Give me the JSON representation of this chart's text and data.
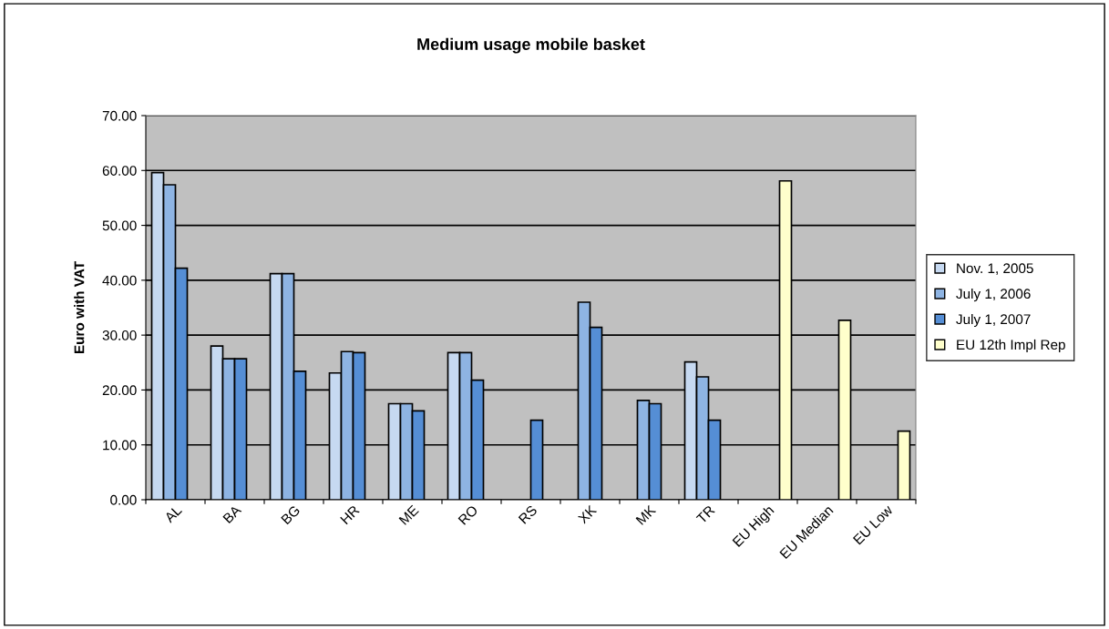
{
  "chart_data": {
    "type": "bar",
    "title": "Medium usage mobile basket",
    "ylabel": "Euro with VAT",
    "categories": [
      "AL",
      "BA",
      "BG",
      "HR",
      "ME",
      "RO",
      "RS",
      "XK",
      "MK",
      "TR",
      "EU High",
      "EU Median",
      "EU Low"
    ],
    "series": [
      {
        "name": "Nov. 1, 2005",
        "color": "#c6d9f1",
        "values": [
          59.6,
          28.0,
          41.2,
          23.1,
          17.5,
          26.8,
          null,
          null,
          null,
          25.1,
          null,
          null,
          null
        ]
      },
      {
        "name": "July 1, 2006",
        "color": "#8eb4e3",
        "values": [
          57.4,
          25.7,
          41.2,
          27.0,
          17.5,
          26.8,
          null,
          36.0,
          18.1,
          22.4,
          null,
          null,
          null
        ]
      },
      {
        "name": "July 1, 2007",
        "color": "#558ed5",
        "values": [
          42.2,
          25.7,
          23.4,
          26.8,
          16.2,
          21.8,
          14.5,
          31.4,
          17.5,
          14.5,
          null,
          null,
          null
        ]
      },
      {
        "name": "EU 12th Impl Rep",
        "color": "#ffffcc",
        "values": [
          null,
          null,
          null,
          null,
          null,
          null,
          null,
          null,
          null,
          null,
          58.1,
          32.7,
          12.5
        ]
      }
    ],
    "ylim": [
      0,
      70
    ],
    "yticks": [
      {
        "value": 0,
        "label": "0.00"
      },
      {
        "value": 10,
        "label": "10.00"
      },
      {
        "value": 20,
        "label": "20.00"
      },
      {
        "value": 30,
        "label": "30.00"
      },
      {
        "value": 40,
        "label": "40.00"
      },
      {
        "value": 50,
        "label": "50.00"
      },
      {
        "value": 60,
        "label": "60.00"
      },
      {
        "value": 70,
        "label": "70.00"
      }
    ],
    "grid": "y",
    "legend": "right"
  }
}
